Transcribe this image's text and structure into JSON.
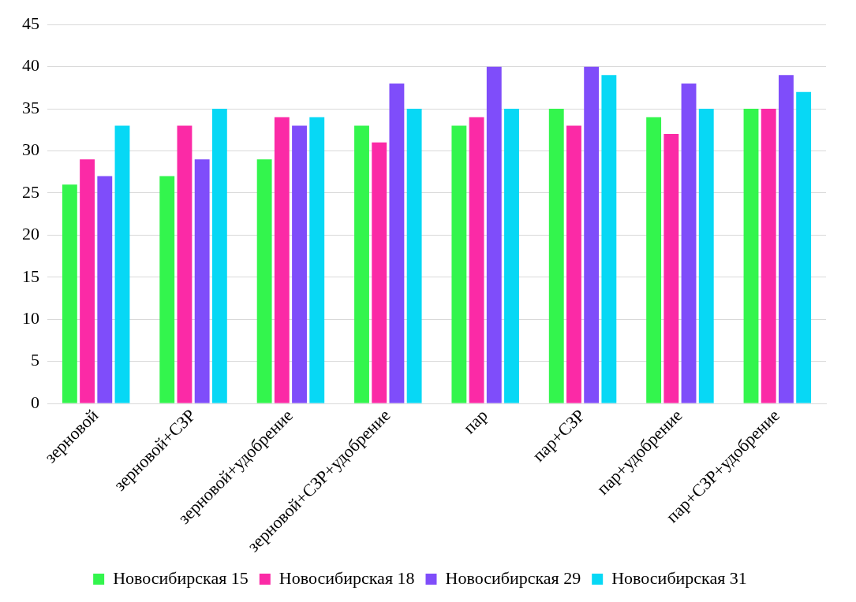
{
  "chart_data": {
    "type": "bar",
    "categories": [
      "зерновой",
      "зерновой+СЗР",
      "зерновой+удобрение",
      "зерновой+СЗР+удобрение",
      "пар",
      "пар+СЗР",
      "пар+удобрение",
      "пар+СЗР+удобрение"
    ],
    "series": [
      {
        "name": "Новосибирская 15",
        "color": "#33f54d",
        "values": [
          26,
          27,
          29,
          33,
          33,
          35,
          34,
          35
        ]
      },
      {
        "name": "Новосибирская 18",
        "color": "#fb2aa6",
        "values": [
          29,
          33,
          34,
          31,
          34,
          33,
          32,
          35
        ]
      },
      {
        "name": "Новосибирская 29",
        "color": "#7f4dfa",
        "values": [
          27,
          29,
          33,
          38,
          40,
          40,
          38,
          39
        ]
      },
      {
        "name": "Новосибирская 31",
        "color": "#07d8f5",
        "values": [
          33,
          35,
          34,
          35,
          35,
          39,
          35,
          37
        ]
      }
    ],
    "ylim": [
      0,
      45
    ],
    "yticks": [
      0,
      5,
      10,
      15,
      20,
      25,
      30,
      35,
      40,
      45
    ],
    "grid": "y",
    "legend": "bottom"
  }
}
